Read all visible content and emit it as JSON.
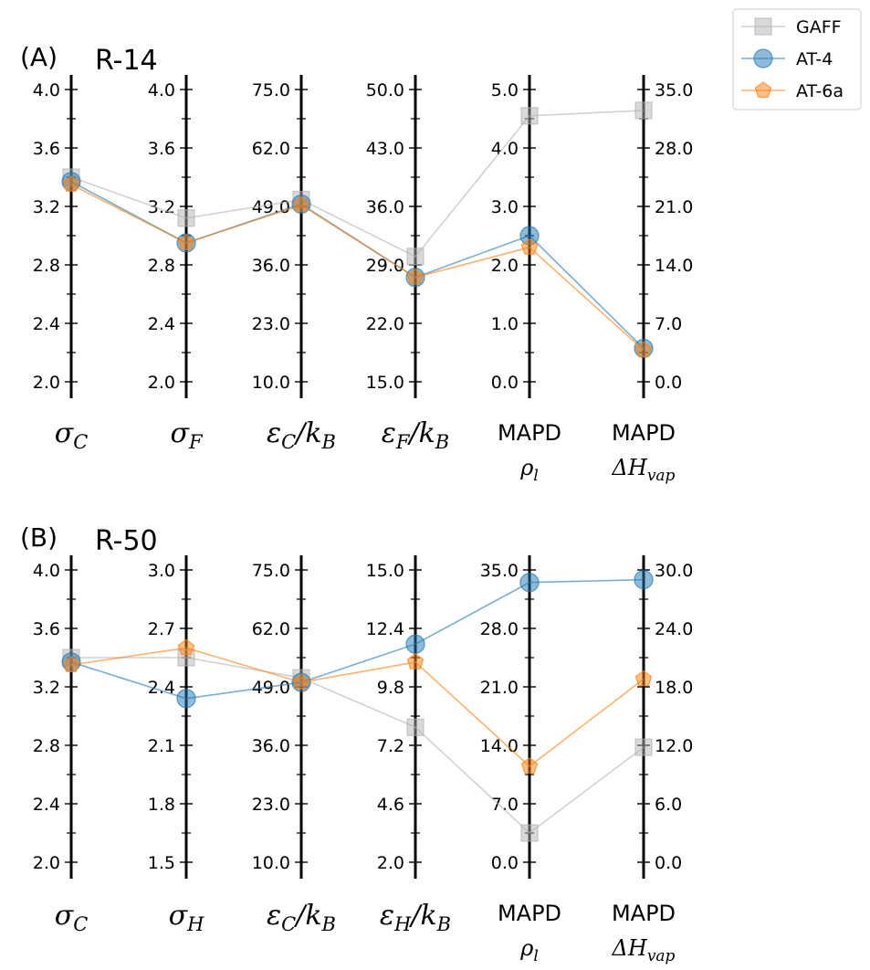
{
  "legend": {
    "entries": [
      {
        "name": "GAFF",
        "color": "#b3b3b3",
        "marker": "square"
      },
      {
        "name": "AT-4",
        "color": "#1f77b4",
        "marker": "circle"
      },
      {
        "name": "AT-6a",
        "color": "#ff7f0e",
        "marker": "pentagon"
      }
    ],
    "placement": "top-right"
  },
  "chart_data": [
    {
      "type": "parallel-coordinates",
      "panel_letter": "(A)",
      "title": "R-14",
      "axes": [
        {
          "label": "σ",
          "sub": "C",
          "ticks": [
            "4.0",
            "3.6",
            "3.2",
            "2.8",
            "2.4",
            "2.0"
          ],
          "range": [
            2.0,
            4.0
          ],
          "side": "left"
        },
        {
          "label": "σ",
          "sub": "F",
          "ticks": [
            "4.0",
            "3.6",
            "3.2",
            "2.8",
            "2.4",
            "2.0"
          ],
          "range": [
            2.0,
            4.0
          ],
          "side": "left"
        },
        {
          "label": "ε",
          "sub": "C",
          "label2": "/k",
          "sub2": "B",
          "ticks": [
            "75.0",
            "62.0",
            "49.0",
            "36.0",
            "23.0",
            "10.0"
          ],
          "range": [
            10.0,
            75.0
          ],
          "side": "left"
        },
        {
          "label": "ε",
          "sub": "F",
          "label2": "/k",
          "sub2": "B",
          "ticks": [
            "50.0",
            "43.0",
            "36.0",
            "29.0",
            "22.0",
            "15.0"
          ],
          "range": [
            15.0,
            50.0
          ],
          "side": "left"
        },
        {
          "label": "MAPD",
          "line2": "ρ",
          "sub": "l",
          "ticks": [
            "5.0",
            "4.0",
            "3.0",
            "2.0",
            "1.0",
            "0.0"
          ],
          "range": [
            0.0,
            5.0
          ],
          "side": "left"
        },
        {
          "label": "MAPD",
          "line2": "ΔH",
          "sub": "vap",
          "ticks": [
            "35.0",
            "28.0",
            "21.0",
            "14.0",
            "7.0",
            "0.0"
          ],
          "range": [
            0.0,
            35.0
          ],
          "side": "right"
        }
      ],
      "series": [
        {
          "name": "GAFF",
          "values": [
            3.4,
            3.12,
            50.5,
            30.0,
            4.55,
            32.5
          ]
        },
        {
          "name": "AT-4",
          "values": [
            3.37,
            2.95,
            49.5,
            27.5,
            2.5,
            4.0
          ]
        },
        {
          "name": "AT-6a",
          "values": [
            3.35,
            2.95,
            49.3,
            27.5,
            2.3,
            3.8
          ]
        }
      ]
    },
    {
      "type": "parallel-coordinates",
      "panel_letter": "(B)",
      "title": "R-50",
      "axes": [
        {
          "label": "σ",
          "sub": "C",
          "ticks": [
            "4.0",
            "3.6",
            "3.2",
            "2.8",
            "2.4",
            "2.0"
          ],
          "range": [
            2.0,
            4.0
          ],
          "side": "left"
        },
        {
          "label": "σ",
          "sub": "H",
          "ticks": [
            "3.0",
            "2.7",
            "2.4",
            "2.1",
            "1.8",
            "1.5"
          ],
          "range": [
            1.5,
            3.0
          ],
          "side": "left"
        },
        {
          "label": "ε",
          "sub": "C",
          "label2": "/k",
          "sub2": "B",
          "ticks": [
            "75.0",
            "62.0",
            "49.0",
            "36.0",
            "23.0",
            "10.0"
          ],
          "range": [
            10.0,
            75.0
          ],
          "side": "left"
        },
        {
          "label": "ε",
          "sub": "H",
          "label2": "/k",
          "sub2": "B",
          "ticks": [
            "15.0",
            "12.4",
            "9.8",
            "7.2",
            "4.6",
            "2.0"
          ],
          "range": [
            2.0,
            15.0
          ],
          "side": "left"
        },
        {
          "label": "MAPD",
          "line2": "ρ",
          "sub": "l",
          "ticks": [
            "35.0",
            "28.0",
            "21.0",
            "14.0",
            "7.0",
            "0.0"
          ],
          "range": [
            0.0,
            35.0
          ],
          "side": "left"
        },
        {
          "label": "MAPD",
          "line2": "ΔH",
          "sub": "vap",
          "ticks": [
            "30.0",
            "24.0",
            "18.0",
            "12.0",
            "6.0",
            "0.0"
          ],
          "range": [
            0.0,
            30.0
          ],
          "side": "right"
        }
      ],
      "series": [
        {
          "name": "GAFF",
          "values": [
            3.4,
            2.55,
            51.0,
            8.0,
            3.5,
            11.8
          ]
        },
        {
          "name": "AT-4",
          "values": [
            3.37,
            2.34,
            50.0,
            11.7,
            33.5,
            29.0
          ]
        },
        {
          "name": "AT-6a",
          "values": [
            3.35,
            2.6,
            50.0,
            10.9,
            11.5,
            18.8
          ]
        }
      ]
    }
  ]
}
